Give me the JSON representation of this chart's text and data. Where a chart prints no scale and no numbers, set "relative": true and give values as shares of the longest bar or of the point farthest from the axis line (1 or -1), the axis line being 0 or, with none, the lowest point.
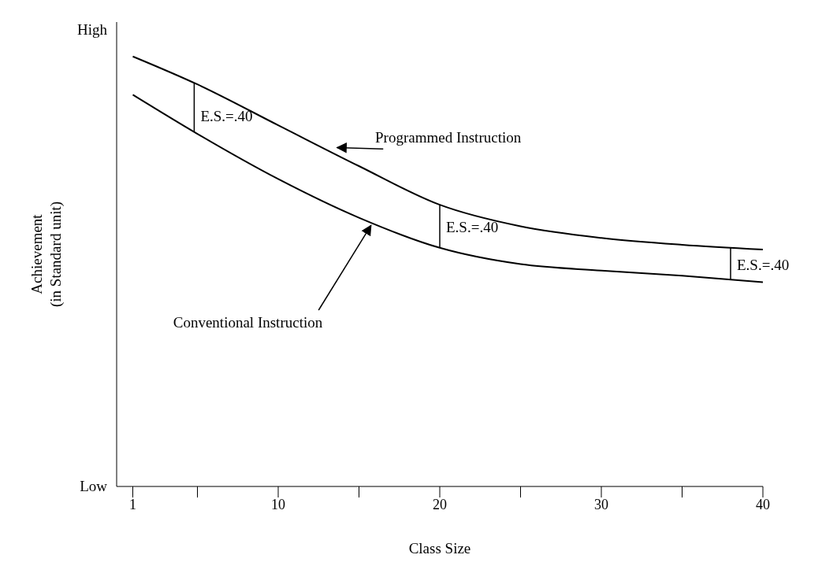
{
  "chart_data": {
    "type": "line",
    "relative": true,
    "xlabel": "Class Size",
    "ylabel": "Achievement (in Standard unit)",
    "xlim": [
      0,
      40
    ],
    "xticks": [
      1,
      {
        "value": 5,
        "label": null
      },
      10,
      {
        "value": 15,
        "label": null
      },
      20,
      {
        "value": 25,
        "label": null
      },
      30,
      {
        "value": 35,
        "label": null
      },
      40
    ],
    "x": [
      1,
      5,
      10,
      15,
      20,
      25,
      30,
      35,
      40
    ],
    "series": [
      {
        "name": "Programmed Instruction",
        "color": "#000000",
        "values": [
          1.0,
          0.935,
          0.84,
          0.745,
          0.655,
          0.605,
          0.578,
          0.562,
          0.551
        ]
      },
      {
        "name": "Conventional Instruction",
        "color": "#000000",
        "values": [
          0.911,
          0.82,
          0.715,
          0.625,
          0.555,
          0.517,
          0.502,
          0.49,
          0.475
        ]
      }
    ],
    "annotations": [
      "High",
      "Low",
      "E.S.=.40",
      "E.S.=.40",
      "E.S.=.40"
    ],
    "marker": "none",
    "line_style": "solid",
    "grid": false,
    "legend": false
  }
}
